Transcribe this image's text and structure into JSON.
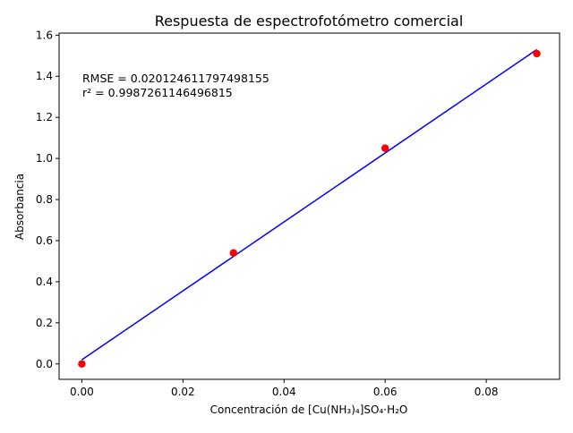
{
  "chart_data": {
    "type": "scatter",
    "title": "Respuesta de espectrofotómetro comercial",
    "xlabel": "Concentración de [Cu(NH₃)₄]SO₄·H₂O",
    "ylabel": "Absorbancia",
    "xlim": [
      -0.0045,
      0.0945
    ],
    "ylim": [
      -0.075,
      1.61
    ],
    "x_ticks": [
      0.0,
      0.02,
      0.04,
      0.06,
      0.08
    ],
    "x_tick_labels": [
      "0.00",
      "0.02",
      "0.04",
      "0.06",
      "0.08"
    ],
    "y_ticks": [
      0.0,
      0.2,
      0.4,
      0.6,
      0.8,
      1.0,
      1.2,
      1.4,
      1.6
    ],
    "y_tick_labels": [
      "0.0",
      "0.2",
      "0.4",
      "0.6",
      "0.8",
      "1.0",
      "1.2",
      "1.4",
      "1.6"
    ],
    "grid": false,
    "series": [
      {
        "kind": "points",
        "color": "#ff0000",
        "x": [
          0.0,
          0.03,
          0.06,
          0.09
        ],
        "y": [
          0.0,
          0.54,
          1.05,
          1.51
        ]
      },
      {
        "kind": "fit-line",
        "color": "#0000ff",
        "x": [
          0.0,
          0.09
        ],
        "y": [
          0.02,
          1.53
        ]
      }
    ],
    "annotation": {
      "line1": "RMSE = 0.020124611797498155",
      "line2": "r² = 0.9987261146496815"
    }
  }
}
